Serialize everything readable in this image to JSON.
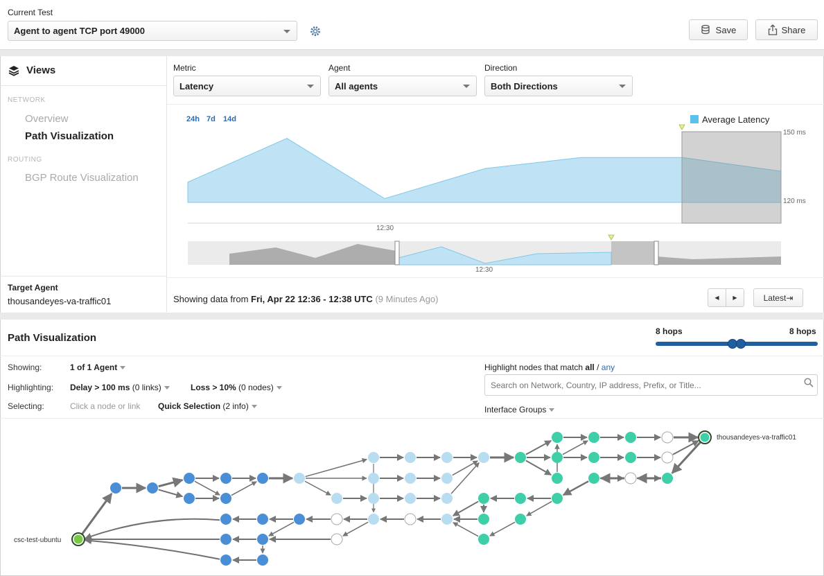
{
  "header": {
    "current_test_label": "Current Test",
    "test_select_value": "Agent to agent TCP port 49000",
    "save_label": "Save",
    "share_label": "Share"
  },
  "sidebar": {
    "title": "Views",
    "sections": [
      {
        "title": "NETWORK",
        "items": [
          {
            "label": "Overview",
            "active": false
          },
          {
            "label": "Path Visualization",
            "active": true
          }
        ]
      },
      {
        "title": "ROUTING",
        "items": [
          {
            "label": "BGP Route Visualization",
            "active": false
          }
        ]
      }
    ],
    "target_agent_label": "Target Agent",
    "target_agent_value": "thousandeyes-va-traffic01"
  },
  "filters": {
    "metric": {
      "label": "Metric",
      "value": "Latency"
    },
    "agent": {
      "label": "Agent",
      "value": "All agents"
    },
    "direction": {
      "label": "Direction",
      "value": "Both Directions"
    }
  },
  "timeframes": [
    "24h",
    "7d",
    "14d"
  ],
  "chart_data": {
    "type": "area",
    "series": [
      {
        "name": "Average Latency",
        "color": "#5bc0eb"
      }
    ],
    "y_ticks": [
      "150 ms",
      "120 ms"
    ],
    "x_tick": "12:30",
    "overview_x_tick": "12:30",
    "values": [
      129,
      145,
      123,
      134,
      138,
      138,
      133
    ],
    "ylim": [
      114,
      152
    ]
  },
  "range": {
    "prefix": "Showing data from ",
    "bold": "Fri, Apr 22 12:36 - 12:38 UTC",
    "suffix": " (9 Minutes Ago)",
    "latest_label": "Latest⇥"
  },
  "path_viz": {
    "title": "Path Visualization",
    "hops_min": "8 hops",
    "hops_max": "8 hops",
    "showing_label": "Showing:",
    "showing_value": "1 of 1 Agent",
    "highlighting_label": "Highlighting:",
    "delay_bold": "Delay > 100 ms",
    "delay_rest": " (0 links)",
    "loss_bold": "Loss > 10%",
    "loss_rest": " (0 nodes)",
    "selecting_label": "Selecting:",
    "selecting_hint": "Click a node or link",
    "quick_bold": "Quick Selection",
    "quick_rest": " (2 info)",
    "highlight_prefix": "Highlight nodes that match ",
    "highlight_all": "all",
    "highlight_sep": " / ",
    "highlight_any": "any",
    "search_placeholder": "Search on Network, Country, IP address, Prefix, or Title...",
    "interface_groups": "Interface Groups",
    "source_agent": "csc-test-ubuntu",
    "target_agent": "thousandeyes-va-traffic01"
  },
  "colors": {
    "accent_blue": "#2a6bb0",
    "node_dark_blue": "#4a8fd6",
    "node_light_blue": "#b8dcf0",
    "node_teal": "#3fcfa8",
    "source_green": "#7ac943"
  }
}
